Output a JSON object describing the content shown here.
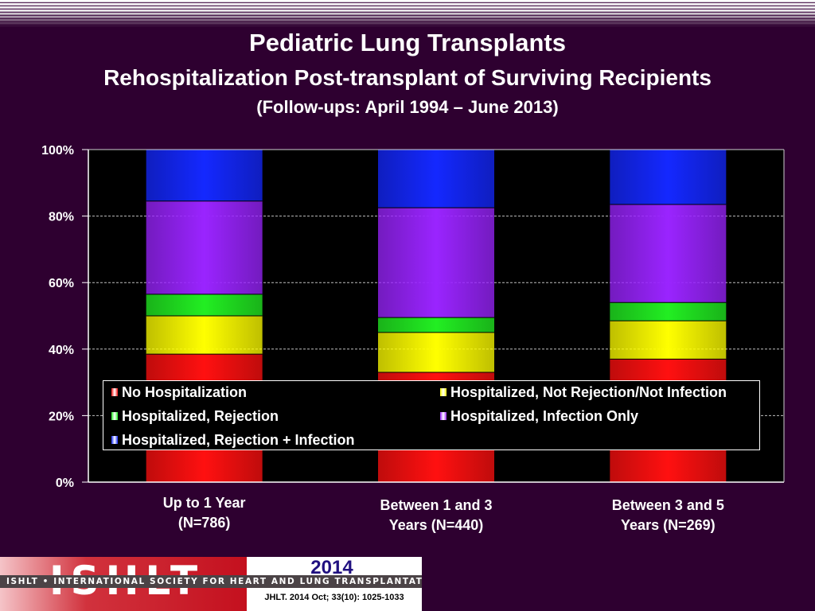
{
  "title": "Pediatric Lung Transplants",
  "subtitle": "Rehospitalization Post-transplant of Surviving Recipients",
  "subtitle2": "(Follow-ups: April 1994 – June 2013)",
  "colors": {
    "background": "#2e0030",
    "plot_background": "#000000",
    "no_hospitalization": "#ff1010",
    "not_rejection_not_infection": "#ffff00",
    "rejection": "#22ee22",
    "infection_only": "#9a24ff",
    "rejection_plus_infection": "#1428ff"
  },
  "chart_data": {
    "type": "bar",
    "stacked": true,
    "categories": [
      "Up to 1 Year\n(N=786)",
      "Between 1 and 3\nYears (N=440)",
      "Between 3 and 5\nYears (N=269)"
    ],
    "category_lines": [
      [
        "Up to 1 Year",
        "(N=786)"
      ],
      [
        "Between 1 and 3",
        "Years (N=440)"
      ],
      [
        "Between 3 and 5",
        "Years (N=269)"
      ]
    ],
    "series": [
      {
        "name": "No Hospitalization",
        "values": [
          38.5,
          33.0,
          37.0
        ],
        "color": "#ff1010"
      },
      {
        "name": "Hospitalized, Not Rejection/Not Infection",
        "values": [
          11.5,
          12.0,
          11.5
        ],
        "color": "#ffff00"
      },
      {
        "name": "Hospitalized, Rejection",
        "values": [
          6.5,
          4.5,
          5.5
        ],
        "color": "#22ee22"
      },
      {
        "name": "Hospitalized, Infection Only",
        "values": [
          28.0,
          33.0,
          29.5
        ],
        "color": "#9a24ff"
      },
      {
        "name": "Hospitalized, Rejection + Infection",
        "values": [
          15.5,
          17.5,
          16.5
        ],
        "color": "#1428ff"
      }
    ],
    "yticks": [
      "0%",
      "20%",
      "40%",
      "60%",
      "80%",
      "100%"
    ],
    "ylim": [
      0,
      100
    ],
    "grid": true,
    "legend_position": "inside, lower"
  },
  "footer": {
    "logo_text": "ISHLT",
    "org_name": "ISHLT • INTERNATIONAL SOCIETY FOR HEART AND LUNG TRANSPLANTATION",
    "year": "2014",
    "citation": "JHLT. 2014 Oct; 33(10): 1025-1033"
  }
}
